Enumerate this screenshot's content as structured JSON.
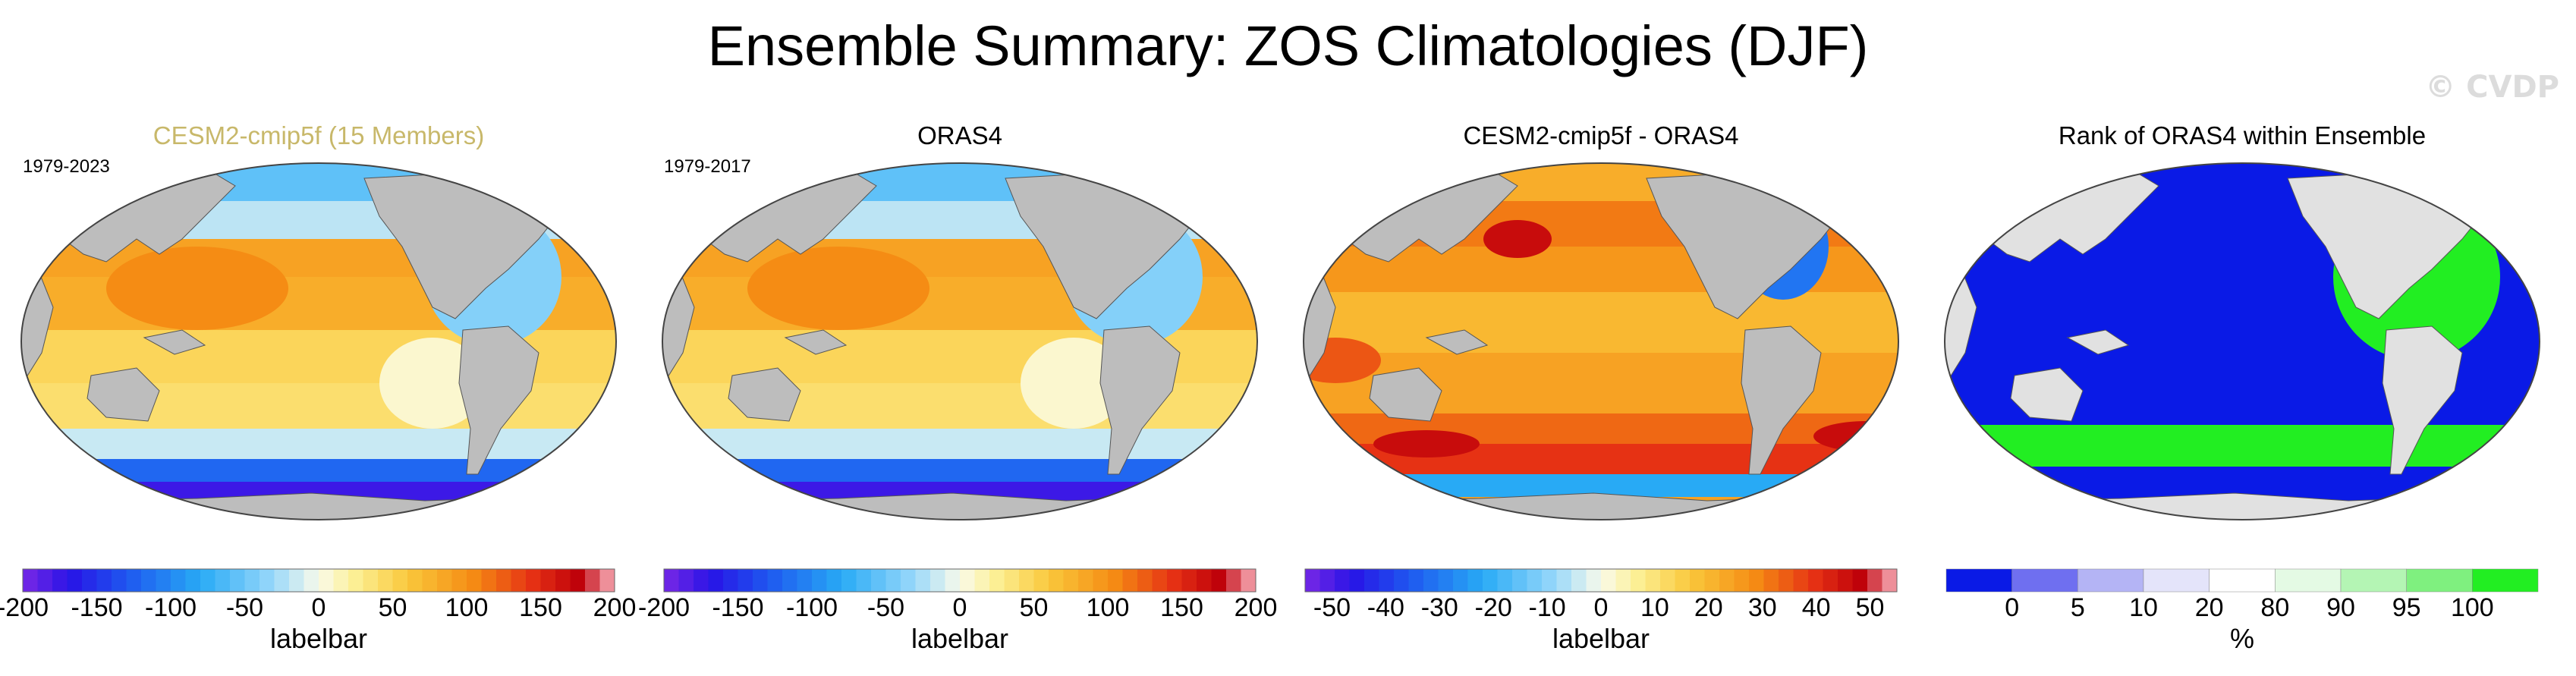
{
  "figure": {
    "title": "Ensemble Summary: ZOS Climatologies (DJF)",
    "watermark": "© CVDP"
  },
  "colors": {
    "land": "#bdbdbd",
    "ocean_warm": "#f5c23a",
    "ocean_cool": "#7ec6f2",
    "southern_ocean": "#3b3bd6",
    "rank_blue": "#0a1ae6",
    "rank_green": "#22ee22",
    "rank_land": "#e1e1e1",
    "ensemble_title": "#c8b86a"
  },
  "chart_data": [
    {
      "type": "heatmap",
      "title": "CESM2-cmip5f (15 Members)",
      "period": "1979-2023",
      "colorbar_label": "labelbar",
      "colorbar_ticks": [
        "-200",
        "-150",
        "-100",
        "-50",
        "0",
        "50",
        "100",
        "150",
        "200"
      ],
      "colorbar_range": [
        -200,
        200
      ],
      "colormap": "diverging_blue_yellow_red"
    },
    {
      "type": "heatmap",
      "title": "ORAS4",
      "period": "1979-2017",
      "colorbar_label": "labelbar",
      "colorbar_ticks": [
        "-200",
        "-150",
        "-100",
        "-50",
        "0",
        "50",
        "100",
        "150",
        "200"
      ],
      "colorbar_range": [
        -200,
        200
      ],
      "colormap": "diverging_blue_yellow_red"
    },
    {
      "type": "heatmap",
      "title": "CESM2-cmip5f - ORAS4",
      "period": "",
      "colorbar_label": "labelbar",
      "colorbar_ticks": [
        "-50",
        "-40",
        "-30",
        "-20",
        "-10",
        "0",
        "10",
        "20",
        "30",
        "40",
        "50"
      ],
      "colorbar_range": [
        -55,
        55
      ],
      "colormap": "diverging_blue_yellow_red"
    },
    {
      "type": "heatmap",
      "title": "Rank of ORAS4 within Ensemble",
      "period": "",
      "colorbar_label": "%",
      "colorbar_ticks": [
        "0",
        "5",
        "10",
        "20",
        "80",
        "90",
        "95",
        "100"
      ],
      "colorbar_range": [
        0,
        100
      ],
      "colormap": "rank_blue_white_green"
    }
  ]
}
